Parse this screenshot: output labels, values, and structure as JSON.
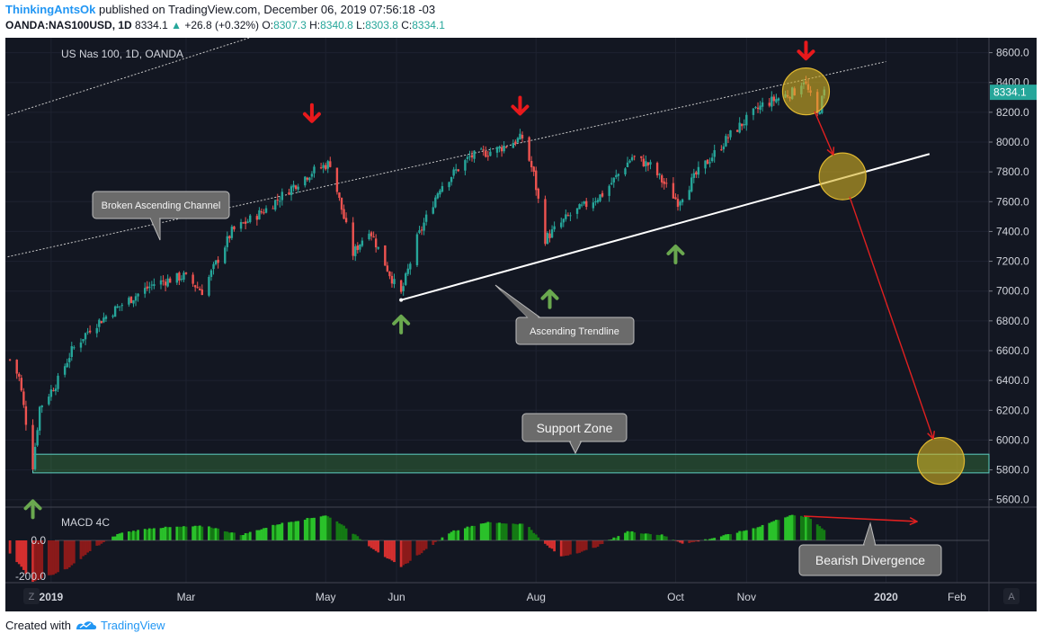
{
  "header": {
    "author": "ThinkingAntsOk",
    "published": "published on TradingView.com, December 06, 2019 07:56:18 -03",
    "symbol": "OANDA:NAS100USD, 1D",
    "last": "8334.1",
    "change": "+26.8 (+0.32%)",
    "o_label": "O:",
    "o_value": "8307.3",
    "h_label": "H:",
    "h_value": "8340.8",
    "l_label": "L:",
    "l_value": "8303.8",
    "c_label": "C:",
    "c_value": "8334.1"
  },
  "footer": {
    "created_with": "Created with",
    "brand": "TradingView"
  },
  "colors": {
    "background": "#131722",
    "up": "#26a69a",
    "down": "#ef5350",
    "macd_up": "#1fa51f",
    "macd_down": "#b22222",
    "down_arrow": "#e8191c",
    "up_arrow": "#6aa84f",
    "circle": "#d4b22a"
  },
  "chart_data": {
    "type": "candlestick",
    "title": "US Nas 100, 1D, OANDA",
    "indicator_label": "MACD 4C",
    "ylim": [
      5550,
      8700
    ],
    "y_ticks": [
      5600,
      5800,
      6000,
      6200,
      6400,
      6600,
      6800,
      7000,
      7200,
      7400,
      7600,
      7800,
      8000,
      8200,
      8400,
      8600
    ],
    "y_tick_labels": [
      "5600.0",
      "5800.0",
      "6000.0",
      "6200.0",
      "6400.0",
      "6600.0",
      "6800.0",
      "7000.0",
      "7200.0",
      "7400.0",
      "7600.0",
      "7800.0",
      "8000.0",
      "8200.0",
      "8400.0",
      "8600.0"
    ],
    "macd_tick_labels": [
      "0.0",
      "-200.0"
    ],
    "x_labels": [
      "2019",
      "Mar",
      "May",
      "Jun",
      "Aug",
      "Oct",
      "Nov",
      "2020",
      "Feb"
    ],
    "x_label_dates": [
      "2019-01-01",
      "2019-03-01",
      "2019-05-01",
      "2019-06-01",
      "2019-08-01",
      "2019-10-01",
      "2019-11-01",
      "2020-01-01",
      "2020-02-01"
    ],
    "x_range": [
      "2018-12-12",
      "2020-02-15"
    ],
    "last_price_label": "8334.1",
    "close_path": [
      [
        "2018-12-14",
        6540
      ],
      [
        "2018-12-18",
        6420
      ],
      [
        "2018-12-24",
        5830
      ],
      [
        "2018-12-27",
        6220
      ],
      [
        "2019-01-04",
        6400
      ],
      [
        "2019-01-10",
        6600
      ],
      [
        "2019-01-18",
        6750
      ],
      [
        "2019-01-31",
        6900
      ],
      [
        "2019-02-15",
        7050
      ],
      [
        "2019-02-28",
        7100
      ],
      [
        "2019-03-08",
        7000
      ],
      [
        "2019-03-21",
        7400
      ],
      [
        "2019-04-05",
        7550
      ],
      [
        "2019-04-18",
        7720
      ],
      [
        "2019-04-25",
        7800
      ],
      [
        "2019-05-03",
        7860
      ],
      [
        "2019-05-07",
        7610
      ],
      [
        "2019-05-13",
        7250
      ],
      [
        "2019-05-20",
        7420
      ],
      [
        "2019-05-31",
        7050
      ],
      [
        "2019-06-03",
        6980
      ],
      [
        "2019-06-10",
        7350
      ],
      [
        "2019-06-20",
        7700
      ],
      [
        "2019-07-03",
        7900
      ],
      [
        "2019-07-15",
        7950
      ],
      [
        "2019-07-26",
        8030
      ],
      [
        "2019-07-31",
        7780
      ],
      [
        "2019-08-05",
        7350
      ],
      [
        "2019-08-15",
        7500
      ],
      [
        "2019-08-30",
        7650
      ],
      [
        "2019-09-12",
        7900
      ],
      [
        "2019-09-20",
        7840
      ],
      [
        "2019-10-02",
        7600
      ],
      [
        "2019-10-10",
        7780
      ],
      [
        "2019-10-25",
        8050
      ],
      [
        "2019-11-08",
        8250
      ],
      [
        "2019-11-22",
        8340
      ],
      [
        "2019-11-26",
        8420
      ],
      [
        "2019-12-02",
        8180
      ],
      [
        "2019-12-05",
        8334
      ]
    ],
    "macd_path": [
      [
        "2018-12-14",
        -70
      ],
      [
        "2018-12-24",
        -230
      ],
      [
        "2019-01-08",
        -160
      ],
      [
        "2019-01-20",
        -40
      ],
      [
        "2019-01-31",
        40
      ],
      [
        "2019-02-15",
        70
      ],
      [
        "2019-03-10",
        80
      ],
      [
        "2019-03-25",
        30
      ],
      [
        "2019-04-10",
        90
      ],
      [
        "2019-05-01",
        140
      ],
      [
        "2019-05-08",
        90
      ],
      [
        "2019-05-20",
        -30
      ],
      [
        "2019-06-03",
        -150
      ],
      [
        "2019-06-15",
        -40
      ],
      [
        "2019-06-25",
        50
      ],
      [
        "2019-07-10",
        100
      ],
      [
        "2019-07-28",
        90
      ],
      [
        "2019-08-03",
        0
      ],
      [
        "2019-08-12",
        -90
      ],
      [
        "2019-08-25",
        -50
      ],
      [
        "2019-09-10",
        50
      ],
      [
        "2019-09-25",
        30
      ],
      [
        "2019-10-05",
        -20
      ],
      [
        "2019-10-20",
        20
      ],
      [
        "2019-11-05",
        70
      ],
      [
        "2019-11-20",
        140
      ],
      [
        "2019-11-28",
        130
      ],
      [
        "2019-12-05",
        60
      ]
    ],
    "trendlines": [
      {
        "name": "Broken Ascending Channel upper",
        "from": [
          "2018-12-13",
          8180
        ],
        "to": [
          "2019-04-12",
          8770
        ],
        "style": "dotted"
      },
      {
        "name": "Broken Ascending Channel lower",
        "from": [
          "2018-12-13",
          7230
        ],
        "to": [
          "2020-01-01",
          8540
        ],
        "style": "dotted"
      },
      {
        "name": "Ascending Trendline",
        "from": [
          "2019-06-03",
          6940
        ],
        "to": [
          "2020-01-20",
          7920
        ],
        "style": "solid"
      }
    ],
    "support_zone": [
      5780,
      5905
    ],
    "down_arrows": [
      [
        "2019-04-25",
        8140
      ],
      [
        "2019-07-25",
        8190
      ],
      [
        "2019-11-27",
        8560
      ]
    ],
    "up_arrows": [
      [
        "2018-12-24",
        5590
      ],
      [
        "2019-06-03",
        6830
      ],
      [
        "2019-08-07",
        7000
      ],
      [
        "2019-10-01",
        7300
      ]
    ],
    "circles": [
      [
        "2019-11-27",
        8340
      ],
      [
        "2019-12-13",
        7770
      ],
      [
        "2020-01-25",
        5860
      ]
    ],
    "projection_path": [
      [
        "2019-11-27",
        8340
      ],
      [
        "2019-12-13",
        7770
      ],
      [
        "2020-01-25",
        5860
      ]
    ],
    "annotations": [
      {
        "text": "Broken Ascending Channel"
      },
      {
        "text": "Ascending Trendline"
      },
      {
        "text": "Support Zone"
      },
      {
        "text": "Bearish Divergence"
      }
    ]
  }
}
